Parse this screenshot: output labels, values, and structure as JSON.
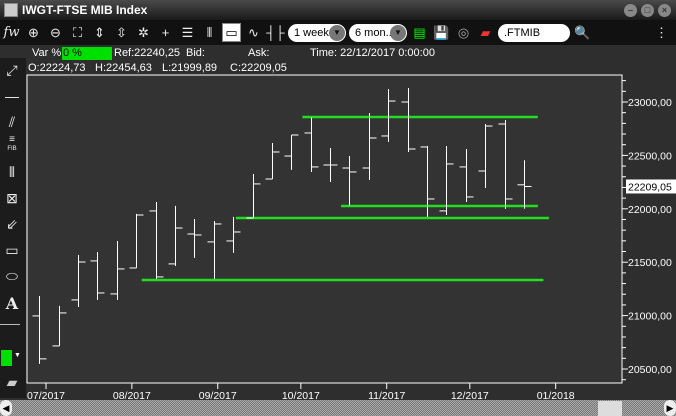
{
  "window": {
    "title": "IWGT-FTSE MIB Index",
    "controls": [
      "minimize",
      "maximize",
      "close"
    ]
  },
  "toolbar": {
    "period": "1 week",
    "range": "6 mon..",
    "symbol": ".FTMIB",
    "icons": [
      "fx-icon",
      "zoom-in-icon",
      "zoom-out-icon",
      "fit-icon",
      "vertical-zoom-in-icon",
      "vertical-zoom-out-icon",
      "reset-zoom-icon",
      "crosshair-icon",
      "horizontal-grid-icon",
      "vertical-grid-icon",
      "window-icon",
      "line-chart-icon",
      "ohlc-bar-icon",
      "indicator-icon",
      "save-icon",
      "refresh-icon",
      "export-icon",
      "search-icon",
      "menu-icon"
    ]
  },
  "info": {
    "var_label": "Var %:",
    "var_value": "0 %",
    "ref": "Ref:22240,25",
    "bid": "Bid:",
    "ask": "Ask:",
    "time": "Time:  22/12/2017 0:00:00",
    "open": "O:22224,73",
    "high": "H:22454,63",
    "low": "L:21999,89",
    "close": "C:22209,05"
  },
  "left_tools": [
    "line-arrow-icon",
    "horizontal-line-icon",
    "parallel-lines-icon",
    "fibonacci-icon",
    "vertical-lines-icon",
    "gann-fan-icon",
    "fan-lines-icon",
    "rectangle-icon",
    "ellipse-icon",
    "text-icon",
    "color-picker-icon",
    "eraser-icon"
  ],
  "left_tool_labels": {
    "fib": "FIB",
    "text": "A"
  },
  "colors": {
    "accent": "#00e000",
    "drawing_line": "#22dd22",
    "bars": "#ffffff",
    "background": "#333333"
  },
  "chart_data": {
    "type": "ohlc",
    "x_ticks": [
      "07/2017",
      "08/2017",
      "09/2017",
      "10/2017",
      "11/2017",
      "12/2017",
      "01/2018"
    ],
    "y_ticks": [
      "20500,00",
      "21000,00",
      "21500,00",
      "22000,00",
      "22500,00",
      "23000,00"
    ],
    "ylim": [
      20350,
      23300
    ],
    "last_value_label": "22209,05",
    "bars": [
      {
        "date": "2017-06-30",
        "o": 20997,
        "h": 21184,
        "l": 20548,
        "c": 20595
      },
      {
        "date": "2017-07-07",
        "o": 20716,
        "h": 21091,
        "l": 20716,
        "c": 21025
      },
      {
        "date": "2017-07-14",
        "o": 21147,
        "h": 21568,
        "l": 21081,
        "c": 21502
      },
      {
        "date": "2017-07-21",
        "o": 21512,
        "h": 21596,
        "l": 21147,
        "c": 21212
      },
      {
        "date": "2017-07-28",
        "o": 21203,
        "h": 21699,
        "l": 21147,
        "c": 21437
      },
      {
        "date": "2017-08-04",
        "o": 21446,
        "h": 21952,
        "l": 21446,
        "c": 21942
      },
      {
        "date": "2017-08-11",
        "o": 21980,
        "h": 22064,
        "l": 21343,
        "c": 21362
      },
      {
        "date": "2017-08-18",
        "o": 21484,
        "h": 22027,
        "l": 21465,
        "c": 21820
      },
      {
        "date": "2017-08-25",
        "o": 21764,
        "h": 21905,
        "l": 21540,
        "c": 21755
      },
      {
        "date": "2017-09-01",
        "o": 21690,
        "h": 21886,
        "l": 21343,
        "c": 21858
      },
      {
        "date": "2017-09-08",
        "o": 21699,
        "h": 21924,
        "l": 21587,
        "c": 21783
      },
      {
        "date": "2017-09-15",
        "o": 21914,
        "h": 22326,
        "l": 21914,
        "c": 22233
      },
      {
        "date": "2017-09-22",
        "o": 22279,
        "h": 22616,
        "l": 22279,
        "c": 22532
      },
      {
        "date": "2017-09-29",
        "o": 22494,
        "h": 22691,
        "l": 22364,
        "c": 22691
      },
      {
        "date": "2017-10-06",
        "o": 22710,
        "h": 22860,
        "l": 22345,
        "c": 22392
      },
      {
        "date": "2017-10-13",
        "o": 22410,
        "h": 22569,
        "l": 22251,
        "c": 22410
      },
      {
        "date": "2017-10-20",
        "o": 22382,
        "h": 22494,
        "l": 22026,
        "c": 22345
      },
      {
        "date": "2017-10-27",
        "o": 22382,
        "h": 22897,
        "l": 22270,
        "c": 22663
      },
      {
        "date": "2017-11-03",
        "o": 22682,
        "h": 23122,
        "l": 22626,
        "c": 23009
      },
      {
        "date": "2017-11-10",
        "o": 23000,
        "h": 23131,
        "l": 22532,
        "c": 22560
      },
      {
        "date": "2017-11-17",
        "o": 22579,
        "h": 22588,
        "l": 21924,
        "c": 22092
      },
      {
        "date": "2017-11-24",
        "o": 21980,
        "h": 22588,
        "l": 21942,
        "c": 22420
      },
      {
        "date": "2017-12-01",
        "o": 22392,
        "h": 22560,
        "l": 22064,
        "c": 22111
      },
      {
        "date": "2017-12-08",
        "o": 22354,
        "h": 22794,
        "l": 22195,
        "c": 22775
      },
      {
        "date": "2017-12-15",
        "o": 22794,
        "h": 22832,
        "l": 21999,
        "c": 22092
      },
      {
        "date": "2017-12-22",
        "o": 22224.73,
        "h": 22454.63,
        "l": 21999.89,
        "c": 22209.05
      }
    ],
    "drawn_lines": [
      {
        "start": "2017-10-03",
        "end": "2017-12-27",
        "value": 22860
      },
      {
        "start": "2017-10-17",
        "end": "2017-12-27",
        "value": 22026
      },
      {
        "start": "2017-09-09",
        "end": "2017-12-31",
        "value": 21914
      },
      {
        "start": "2017-08-06",
        "end": "2017-12-29",
        "value": 21333
      }
    ]
  }
}
